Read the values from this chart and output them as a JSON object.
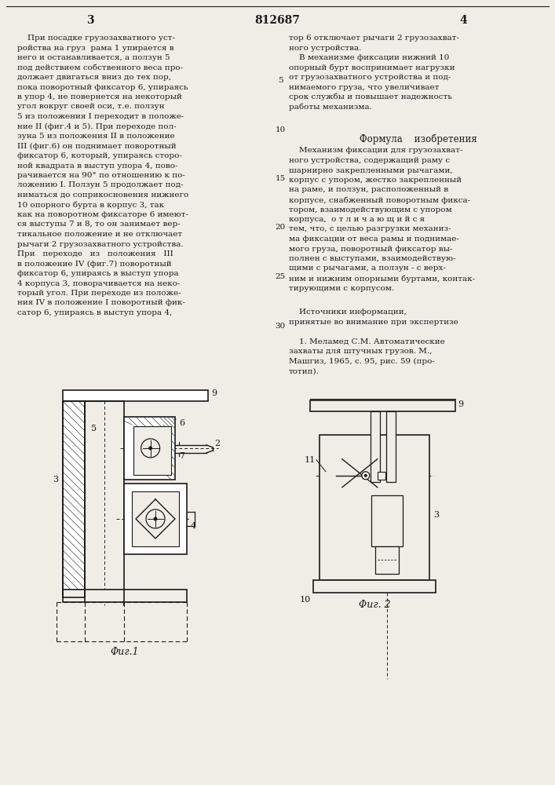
{
  "page_number_left": "3",
  "page_number_center": "812687",
  "page_number_right": "4",
  "left_column_text": [
    "    При посадке грузозахватного уст-",
    "ройства на груз  рама 1 упирается в",
    "него и останавливается, а ползун 5",
    "под действием собственного веса про-",
    "должает двигаться вниз до тех пор,",
    "пока поворотный фиксатор 6, упираясь",
    "в упор 4, не повернется на некоторый",
    "угол вокруг своей оси, т.е. ползун",
    "5 из положения I переходит в положе-",
    "ние II (фиг.4 и 5). При переходе пол-",
    "зуна 5 из положения II в положение",
    "III (фиг.6) он поднимает поворотный",
    "фиксатор 6, который, упираясь сторо-",
    "ной квадрата в выступ упора 4, пово-",
    "рачивается на 90° по отношению к по-",
    "ложению I. Ползун 5 продолжает под-",
    "ниматься до соприкосновения нижнего",
    "10 опорного бурта в корпус 3, так",
    "как на поворотном фиксаторе 6 имеют-",
    "ся выступы 7 и 8, то он занимает вер-",
    "тикальное положение и не отключает",
    "рычаги 2 грузозахватного устройства.",
    "При   переходе   из   положения   III",
    "в положение IV (фиг.7) поворотный",
    "фиксатор 6, упираясь в выступ упора",
    "4 корпуса 3, поворачивается на неко-",
    "торый угол. При переходе из положе-",
    "ния IV в положение I поворотный фик-",
    "сатор 6, упираясь в выступ упора 4,"
  ],
  "right_col1": [
    "тор 6 отключает рычаги 2 грузозахват-",
    "ного устройства.",
    "    В механизме фиксации нижний 10",
    "опорный бурт воспринимает нагрузки",
    "от грузозахватного устройства и под-",
    "нимаемого груза, что увеличивает",
    "срок службы и повышает надежность",
    "работы механизма."
  ],
  "formula_header": "Формула    изобретения",
  "formula_text": [
    "    Механизм фиксации для грузозахват-",
    "ного устройства, содержащий раму с",
    "шарнирно закрепленными рычагами,",
    "корпус с упором, жестко закрепленный",
    "на раме, и ползун, расположенный в",
    "корпусе, снабженный поворотным фикса-",
    "тором, взаимодействующим с упором",
    "корпуса,  о т л и ч а ю щ и й с я",
    "тем, что, с целью разгрузки механиз-",
    "ма фиксации от веса рамы и поднимае-",
    "мого груза, поворотный фиксатор вы-",
    "полнен с выступами, взаимодействую-",
    "щими с рычагами, а ползун - с верх-",
    "ним и нижним опорными буртами, контак-",
    "тирующими с корпусом."
  ],
  "sources_header": "    Источники информации,",
  "sources_subheader": "принятые во внимание при экспертизе",
  "sources_text": [
    "    1. Меламед С.М. Автоматические",
    "захваты для штучных грузов. М.,",
    "Машгиз, 1965, с. 95, рис. 59 (про-",
    "тотип)."
  ],
  "bg_color": "#f0ede6",
  "text_color": "#1a1a1a",
  "fig1_caption": "Φиг.1",
  "fig2_caption": "Φиг. 2",
  "line_margin_numbers": [
    {
      "text": "5",
      "row": 4
    },
    {
      "text": "10",
      "row": 9
    },
    {
      "text": "15",
      "row": 14
    },
    {
      "text": "20",
      "row": 19
    },
    {
      "text": "25",
      "row": 24
    },
    {
      "text": "30",
      "row": 29
    }
  ]
}
